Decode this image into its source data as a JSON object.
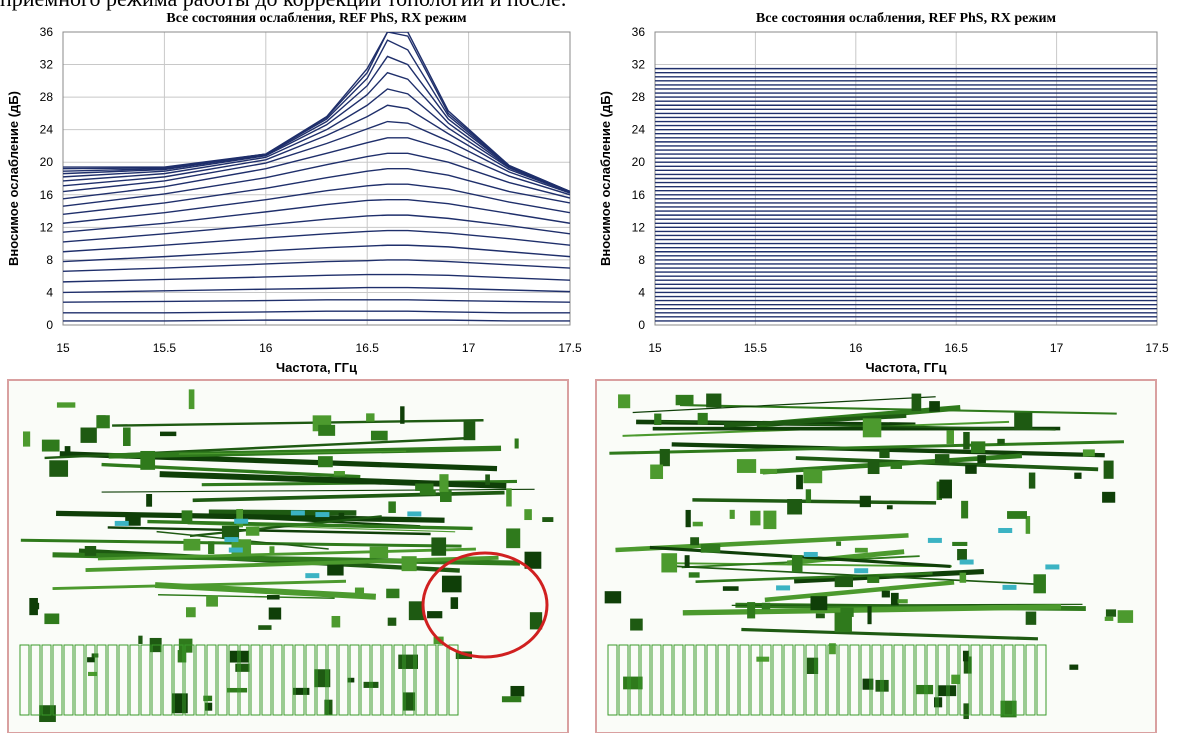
{
  "caption": "приемного режима работы до коррекции топологии и после.",
  "chart_data": [
    {
      "type": "line",
      "title": "Все состояния ослабления, REF PhS, RX режим",
      "x_label": "Частота, ГГц",
      "y_label": "Вносимое ослабление (дБ)",
      "color": "#1f2f6b",
      "grid": true,
      "xlim": [
        15,
        17.5
      ],
      "xticks": [
        15,
        15.5,
        16,
        16.5,
        17,
        17.5
      ],
      "ylim": [
        0,
        36
      ],
      "yticks": [
        0,
        4,
        8,
        12,
        16,
        20,
        24,
        28,
        32,
        36
      ],
      "x": [
        15,
        15.5,
        16,
        16.3,
        16.5,
        16.6,
        16.7,
        16.9,
        17.2,
        17.5
      ],
      "series": [
        {
          "values": [
            0.5,
            0.5,
            0.6,
            0.6,
            0.6,
            0.6,
            0.6,
            0.6,
            0.5,
            0.5
          ]
        },
        {
          "values": [
            1.5,
            1.5,
            1.6,
            1.7,
            1.7,
            1.7,
            1.7,
            1.6,
            1.5,
            1.5
          ]
        },
        {
          "values": [
            2.8,
            2.9,
            3.0,
            3.1,
            3.1,
            3.1,
            3.1,
            3.0,
            2.9,
            2.8
          ]
        },
        {
          "values": [
            4.0,
            4.2,
            4.4,
            4.5,
            4.6,
            4.6,
            4.6,
            4.5,
            4.3,
            4.1
          ]
        },
        {
          "values": [
            5.3,
            5.6,
            5.9,
            6.1,
            6.2,
            6.2,
            6.2,
            6.1,
            5.8,
            5.5
          ]
        },
        {
          "values": [
            6.6,
            7.0,
            7.5,
            7.8,
            7.9,
            8.0,
            8.0,
            7.8,
            7.4,
            7.0
          ]
        },
        {
          "values": [
            7.8,
            8.4,
            9.1,
            9.5,
            9.7,
            9.8,
            9.8,
            9.6,
            9.0,
            8.4
          ]
        },
        {
          "values": [
            9.0,
            9.8,
            10.7,
            11.2,
            11.5,
            11.6,
            11.6,
            11.3,
            10.6,
            9.8
          ]
        },
        {
          "values": [
            10.2,
            11.2,
            12.3,
            13.0,
            13.4,
            13.5,
            13.5,
            13.1,
            12.2,
            11.2
          ]
        },
        {
          "values": [
            11.4,
            12.5,
            13.9,
            14.8,
            15.3,
            15.4,
            15.4,
            14.9,
            13.7,
            12.5
          ]
        },
        {
          "values": [
            12.5,
            13.8,
            15.4,
            16.5,
            17.1,
            17.3,
            17.3,
            16.7,
            15.1,
            13.8
          ]
        },
        {
          "values": [
            13.6,
            15.0,
            16.8,
            18.1,
            18.9,
            19.2,
            19.2,
            18.4,
            16.4,
            15.0
          ]
        },
        {
          "values": [
            14.6,
            16.1,
            18.1,
            19.7,
            20.7,
            21.1,
            21.1,
            20.0,
            17.5,
            15.6
          ]
        },
        {
          "values": [
            15.5,
            17.0,
            19.2,
            21.1,
            22.4,
            23.0,
            23.0,
            21.5,
            18.3,
            16.0
          ]
        },
        {
          "values": [
            16.4,
            17.7,
            19.9,
            22.3,
            24.1,
            25.0,
            24.8,
            22.6,
            18.8,
            16.2
          ]
        },
        {
          "values": [
            17.1,
            18.2,
            20.3,
            23.3,
            25.6,
            27.0,
            26.6,
            23.5,
            19.1,
            16.3
          ]
        },
        {
          "values": [
            17.7,
            18.6,
            20.6,
            24.0,
            27.0,
            29.0,
            28.4,
            24.2,
            19.3,
            16.3
          ]
        },
        {
          "values": [
            18.2,
            18.9,
            20.8,
            24.6,
            28.3,
            31.0,
            30.2,
            24.8,
            19.4,
            16.4
          ]
        },
        {
          "values": [
            18.6,
            19.1,
            20.9,
            25.0,
            29.4,
            33.0,
            32.0,
            25.3,
            19.5,
            16.4
          ]
        },
        {
          "values": [
            18.9,
            19.2,
            21.0,
            25.3,
            30.3,
            35.0,
            33.8,
            25.7,
            19.5,
            16.4
          ]
        },
        {
          "values": [
            19.2,
            19.3,
            21.0,
            25.5,
            31.0,
            36.0,
            35.5,
            26.0,
            19.6,
            16.4
          ]
        },
        {
          "values": [
            19.4,
            19.4,
            21.0,
            25.6,
            31.5,
            36.0,
            36.0,
            26.3,
            19.6,
            16.4
          ]
        }
      ]
    },
    {
      "type": "line",
      "title": "Все состояния ослабления, REF PhS, RX режим",
      "x_label": "Частота, ГГц",
      "y_label": "Вносимое ослабление (дБ)",
      "color": "#1f2f6b",
      "grid": true,
      "xlim": [
        15,
        17.5
      ],
      "xticks": [
        15,
        15.5,
        16,
        16.5,
        17,
        17.5
      ],
      "ylim": [
        0,
        36
      ],
      "yticks": [
        0,
        4,
        8,
        12,
        16,
        20,
        24,
        28,
        32,
        36
      ],
      "x": [
        15,
        17.5
      ],
      "series": [
        {
          "values": [
            0.5,
            0.5
          ]
        },
        {
          "values": [
            1,
            1
          ]
        },
        {
          "values": [
            1.5,
            1.5
          ]
        },
        {
          "values": [
            2,
            2
          ]
        },
        {
          "values": [
            2.5,
            2.5
          ]
        },
        {
          "values": [
            3,
            3
          ]
        },
        {
          "values": [
            3.5,
            3.5
          ]
        },
        {
          "values": [
            4,
            4
          ]
        },
        {
          "values": [
            4.5,
            4.5
          ]
        },
        {
          "values": [
            5,
            5
          ]
        },
        {
          "values": [
            5.5,
            5.5
          ]
        },
        {
          "values": [
            6,
            6
          ]
        },
        {
          "values": [
            6.5,
            6.5
          ]
        },
        {
          "values": [
            7,
            7
          ]
        },
        {
          "values": [
            7.5,
            7.5
          ]
        },
        {
          "values": [
            8,
            8
          ]
        },
        {
          "values": [
            8.5,
            8.5
          ]
        },
        {
          "values": [
            9,
            9
          ]
        },
        {
          "values": [
            9.5,
            9.5
          ]
        },
        {
          "values": [
            10,
            10
          ]
        },
        {
          "values": [
            10.5,
            10.5
          ]
        },
        {
          "values": [
            11,
            11
          ]
        },
        {
          "values": [
            11.5,
            11.5
          ]
        },
        {
          "values": [
            12,
            12
          ]
        },
        {
          "values": [
            12.5,
            12.5
          ]
        },
        {
          "values": [
            13,
            13
          ]
        },
        {
          "values": [
            13.5,
            13.5
          ]
        },
        {
          "values": [
            14,
            14
          ]
        },
        {
          "values": [
            14.5,
            14.5
          ]
        },
        {
          "values": [
            15,
            15
          ]
        },
        {
          "values": [
            15.5,
            15.5
          ]
        },
        {
          "values": [
            16,
            16
          ]
        },
        {
          "values": [
            16.5,
            16.5
          ]
        },
        {
          "values": [
            17,
            17
          ]
        },
        {
          "values": [
            17.5,
            17.5
          ]
        },
        {
          "values": [
            18,
            18
          ]
        },
        {
          "values": [
            18.5,
            18.5
          ]
        },
        {
          "values": [
            19,
            19
          ]
        },
        {
          "values": [
            19.5,
            19.5
          ]
        },
        {
          "values": [
            20,
            20
          ]
        },
        {
          "values": [
            20.5,
            20.5
          ]
        },
        {
          "values": [
            21,
            21
          ]
        },
        {
          "values": [
            21.5,
            21.5
          ]
        },
        {
          "values": [
            22,
            22
          ]
        },
        {
          "values": [
            22.5,
            22.5
          ]
        },
        {
          "values": [
            23,
            23
          ]
        },
        {
          "values": [
            23.5,
            23.5
          ]
        },
        {
          "values": [
            24,
            24
          ]
        },
        {
          "values": [
            24.5,
            24.5
          ]
        },
        {
          "values": [
            25,
            25
          ]
        },
        {
          "values": [
            25.5,
            25.5
          ]
        },
        {
          "values": [
            26,
            26
          ]
        },
        {
          "values": [
            26.5,
            26.5
          ]
        },
        {
          "values": [
            27,
            27
          ]
        },
        {
          "values": [
            27.5,
            27.5
          ]
        },
        {
          "values": [
            28,
            28
          ]
        },
        {
          "values": [
            28.5,
            28.5
          ]
        },
        {
          "values": [
            29,
            29
          ]
        },
        {
          "values": [
            29.5,
            29.5
          ]
        },
        {
          "values": [
            30,
            30
          ]
        },
        {
          "values": [
            30.5,
            30.5
          ]
        },
        {
          "values": [
            31,
            31
          ]
        },
        {
          "values": [
            31.5,
            31.5
          ]
        }
      ]
    }
  ]
}
